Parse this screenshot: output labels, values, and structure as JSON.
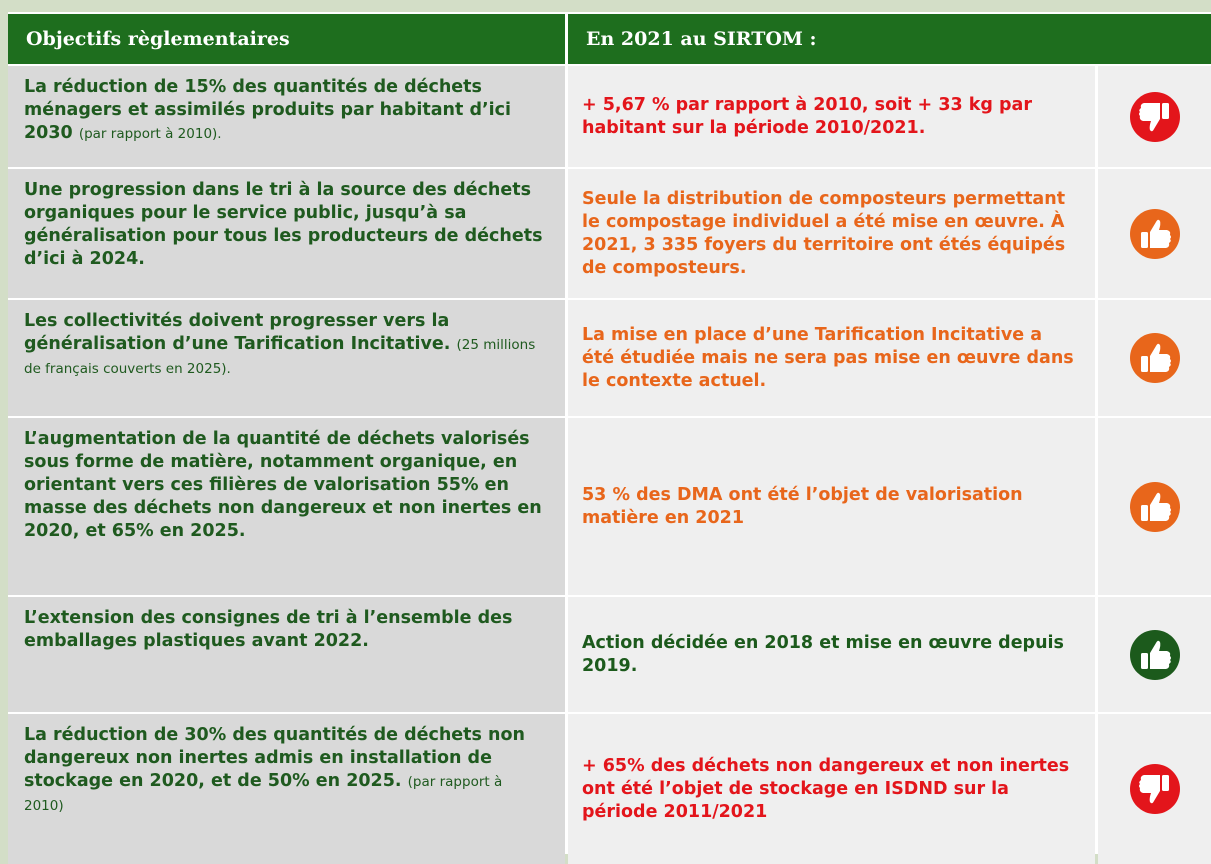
{
  "table": {
    "headers": [
      "Objectifs règlementaires",
      "En 2021 au SIRTOM :"
    ],
    "header_color": "#1e6e1e",
    "rows": [
      {
        "objective": "La réduction de 15% des quantités de déchets ménagers et assimilés produits par habitant d’ici 2030",
        "note": "(par rapport à 2010).",
        "result": "+ 5,67 %  par rapport à 2010, soit + 33 kg par habitant sur la période 2010/2021.",
        "color": "#e3151b",
        "icon": "thumbs-down"
      },
      {
        "objective": "Une progression dans le tri à la source des déchets organiques pour le service public, jusqu’à sa généralisation pour tous les producteurs de déchets d’ici à 2024.",
        "note": null,
        "result": "Seule la distribution de composteurs permettant le compostage individuel a été mise en œuvre. À 2021, 3 335 foyers du territoire ont étés équipés de composteurs.",
        "color": "#e8661b",
        "icon": "thumbs-up"
      },
      {
        "objective": "Les collectivités doivent progresser vers la généralisation d’une Tarification Incitative.",
        "note": "(25 millions de français couverts en 2025).",
        "result": "La mise en place d’une Tarification Incitative a été étudiée mais ne sera pas mise en œuvre dans le contexte actuel.",
        "color": "#e8661b",
        "icon": "thumbs-up"
      },
      {
        "objective": "L’augmentation de la quantité de déchets valorisés sous forme de matière, notamment organique, en orientant vers ces filières de valorisation 55% en masse des déchets non dangereux et non inertes en 2020, et 65% en 2025.",
        "note": null,
        "result": "53 % des DMA ont été l’objet de valorisation matière en 2021",
        "color": "#e8661b",
        "icon": "thumbs-up"
      },
      {
        "objective": "L’extension des consignes de tri à l’ensemble des emballages plastiques avant 2022.",
        "note": null,
        "result": "Action décidée en 2018 et  mise en œuvre depuis 2019.",
        "color": "#1c5a1c",
        "icon": "thumbs-up"
      },
      {
        "objective": "La réduction de 30% des quantités de déchets non dangereux non inertes admis en installation de stockage en 2020, et de 50% en 2025.",
        "note": "(par rapport à 2010)",
        "result": "+ 65% des déchets non dangereux et non inertes ont été l’objet de stockage en ISDND sur la période 2011/2021",
        "color": "#e3151b",
        "icon": "thumbs-down"
      }
    ]
  }
}
